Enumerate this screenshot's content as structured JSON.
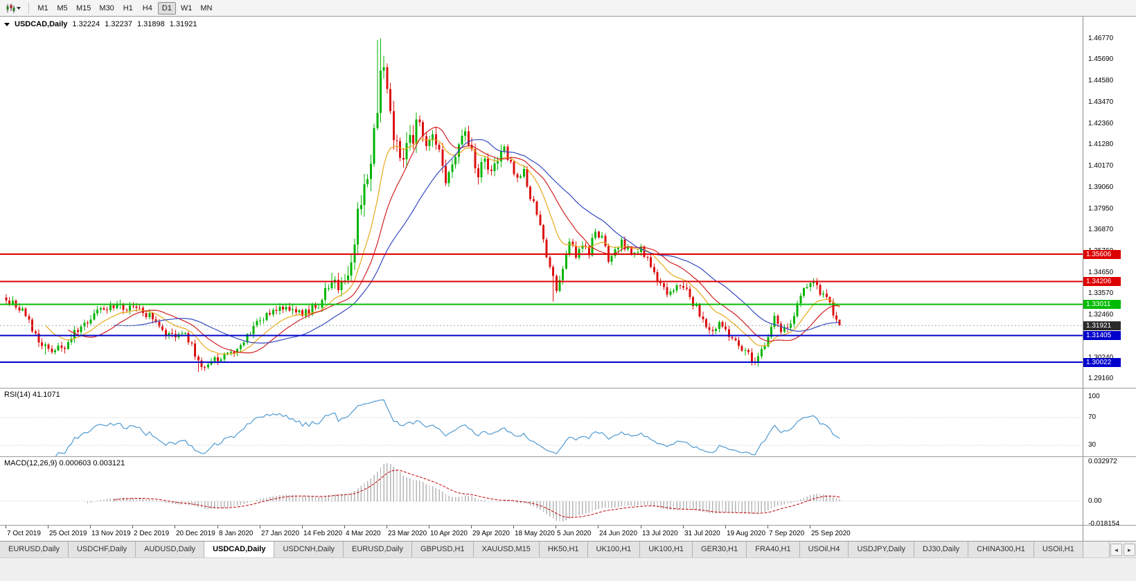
{
  "toolbar": {
    "timeframes": [
      {
        "label": "M1"
      },
      {
        "label": "M5"
      },
      {
        "label": "M15"
      },
      {
        "label": "M30"
      },
      {
        "label": "H1"
      },
      {
        "label": "H4"
      },
      {
        "label": "D1"
      },
      {
        "label": "W1"
      },
      {
        "label": "MN"
      }
    ],
    "active_timeframe": "D1"
  },
  "chart": {
    "symbol_label": "USDCAD,Daily",
    "ohlc": {
      "open": "1.32224",
      "high": "1.32237",
      "low": "1.31898",
      "close": "1.31921"
    }
  },
  "chart_data": {
    "type": "candlestick",
    "title": "USDCAD Daily with RSI and MACD",
    "symbol": "USDCAD",
    "timeframe": "Daily",
    "ylim": [
      1.287,
      1.479
    ],
    "num_candles": 257,
    "up_color": "#00b400",
    "down_color": "#dc1010",
    "last_candle": {
      "open": 1.32224,
      "high": 1.32237,
      "low": 1.31898,
      "close": 1.31921
    },
    "close_waypoints": [
      [
        0,
        1.333
      ],
      [
        3,
        1.3295
      ],
      [
        6,
        1.3245
      ],
      [
        9,
        1.3135
      ],
      [
        12,
        1.3085
      ],
      [
        15,
        1.306
      ],
      [
        18,
        1.309
      ],
      [
        21,
        1.316
      ],
      [
        24,
        1.3195
      ],
      [
        27,
        1.325
      ],
      [
        30,
        1.327
      ],
      [
        33,
        1.3285
      ],
      [
        36,
        1.328
      ],
      [
        39,
        1.33
      ],
      [
        42,
        1.3258
      ],
      [
        45,
        1.3232
      ],
      [
        48,
        1.3168
      ],
      [
        51,
        1.3132
      ],
      [
        54,
        1.3162
      ],
      [
        57,
        1.3085
      ],
      [
        59,
        1.3
      ],
      [
        61,
        1.2985
      ],
      [
        63,
        1.3002
      ],
      [
        66,
        1.3032
      ],
      [
        69,
        1.3052
      ],
      [
        72,
        1.3098
      ],
      [
        75,
        1.3168
      ],
      [
        78,
        1.3222
      ],
      [
        81,
        1.3262
      ],
      [
        84,
        1.3298
      ],
      [
        87,
        1.3288
      ],
      [
        90,
        1.3258
      ],
      [
        93,
        1.3272
      ],
      [
        96,
        1.33
      ],
      [
        98,
        1.339
      ],
      [
        100,
        1.343
      ],
      [
        102,
        1.3375
      ],
      [
        104,
        1.3425
      ],
      [
        106,
        1.3565
      ],
      [
        108,
        1.3755
      ],
      [
        110,
        1.3925
      ],
      [
        112,
        1.403
      ],
      [
        114,
        1.433
      ],
      [
        115,
        1.454
      ],
      [
        116,
        1.45
      ],
      [
        117,
        1.446
      ],
      [
        119,
        1.415
      ],
      [
        121,
        1.406
      ],
      [
        123,
        1.412
      ],
      [
        125,
        1.4185
      ],
      [
        127,
        1.423
      ],
      [
        129,
        1.415
      ],
      [
        131,
        1.418
      ],
      [
        133,
        1.408
      ],
      [
        135,
        1.392
      ],
      [
        137,
        1.401
      ],
      [
        139,
        1.412
      ],
      [
        141,
        1.418
      ],
      [
        143,
        1.409
      ],
      [
        145,
        1.398
      ],
      [
        147,
        1.406
      ],
      [
        149,
        1.399
      ],
      [
        151,
        1.404
      ],
      [
        153,
        1.411
      ],
      [
        155,
        1.402
      ],
      [
        157,
        1.396
      ],
      [
        159,
        1.399
      ],
      [
        161,
        1.386
      ],
      [
        163,
        1.378
      ],
      [
        165,
        1.362
      ],
      [
        167,
        1.348
      ],
      [
        169,
        1.339
      ],
      [
        171,
        1.35
      ],
      [
        173,
        1.363
      ],
      [
        175,
        1.356
      ],
      [
        177,
        1.361
      ],
      [
        179,
        1.356
      ],
      [
        181,
        1.369
      ],
      [
        183,
        1.364
      ],
      [
        185,
        1.354
      ],
      [
        187,
        1.359
      ],
      [
        189,
        1.362
      ],
      [
        191,
        1.358
      ],
      [
        193,
        1.3555
      ],
      [
        195,
        1.359
      ],
      [
        197,
        1.353
      ],
      [
        199,
        1.346
      ],
      [
        201,
        1.34
      ],
      [
        203,
        1.335
      ],
      [
        205,
        1.3385
      ],
      [
        207,
        1.3405
      ],
      [
        209,
        1.337
      ],
      [
        211,
        1.331
      ],
      [
        213,
        1.3255
      ],
      [
        215,
        1.3185
      ],
      [
        217,
        1.3155
      ],
      [
        219,
        1.3195
      ],
      [
        221,
        1.3155
      ],
      [
        223,
        1.3115
      ],
      [
        225,
        1.309
      ],
      [
        227,
        1.3055
      ],
      [
        229,
        1.3025
      ],
      [
        230,
        1.2996
      ],
      [
        232,
        1.3062
      ],
      [
        234,
        1.3132
      ],
      [
        236,
        1.3232
      ],
      [
        238,
        1.3172
      ],
      [
        240,
        1.3162
      ],
      [
        242,
        1.3242
      ],
      [
        244,
        1.3332
      ],
      [
        246,
        1.3402
      ],
      [
        248,
        1.3415
      ],
      [
        250,
        1.3372
      ],
      [
        252,
        1.3332
      ],
      [
        254,
        1.3262
      ],
      [
        255,
        1.3222
      ],
      [
        256,
        1.31921
      ]
    ],
    "forced_extremes": [
      {
        "index": 12,
        "low": 1.3042
      },
      {
        "index": 59,
        "low": 1.2952
      },
      {
        "index": 100,
        "high": 1.3464
      },
      {
        "index": 114,
        "high": 1.4668
      },
      {
        "index": 115,
        "high": 1.4677
      },
      {
        "index": 168,
        "low": 1.3316
      },
      {
        "index": 230,
        "low": 1.2994
      }
    ],
    "moving_averages": [
      {
        "name": "ma-fast-line",
        "type": "ema",
        "period": 13,
        "color": "#e8a818"
      },
      {
        "name": "ma-mid-line",
        "type": "sma",
        "period": 20,
        "color": "#d02020"
      },
      {
        "name": "ma-slow-line",
        "type": "sma",
        "period": 34,
        "color": "#3348c0"
      }
    ],
    "horizontal_levels": [
      {
        "price": 1.35606,
        "label": "1.35606",
        "color": "#dd0000",
        "width": 2
      },
      {
        "price": 1.34206,
        "label": "1.34206",
        "color": "#dd0000",
        "width": 2
      },
      {
        "price": 1.33011,
        "label": "1.33011",
        "color": "#00bb00",
        "width": 2
      },
      {
        "price": 1.31405,
        "label": "1.31405",
        "color": "#0000cc",
        "width": 2
      },
      {
        "price": 1.30022,
        "label": "1.30022",
        "color": "#0000cc",
        "width": 2
      }
    ],
    "current_price": {
      "value": 1.31921,
      "label": "1.31921",
      "badge_bg": "#2b2b2b"
    },
    "price_axis_ticks": [
      "1.46770",
      "1.45690",
      "1.44580",
      "1.43470",
      "1.42360",
      "1.41280",
      "1.40170",
      "1.39060",
      "1.37950",
      "1.36870",
      "1.35760",
      "1.34650",
      "1.33570",
      "1.32460",
      "1.31350",
      "1.30240",
      "1.29160"
    ],
    "x_date_ticks": [
      {
        "index": 0,
        "label": "7 Oct 2019"
      },
      {
        "index": 13,
        "label": "25 Oct 2019"
      },
      {
        "index": 26,
        "label": "13 Nov 2019"
      },
      {
        "index": 39,
        "label": "2 Dec 2019"
      },
      {
        "index": 52,
        "label": "20 Dec 2019"
      },
      {
        "index": 65,
        "label": "8 Jan 2020"
      },
      {
        "index": 78,
        "label": "27 Jan 2020"
      },
      {
        "index": 91,
        "label": "14 Feb 2020"
      },
      {
        "index": 104,
        "label": "4 Mar 2020"
      },
      {
        "index": 117,
        "label": "23 Mar 2020"
      },
      {
        "index": 130,
        "label": "10 Apr 2020"
      },
      {
        "index": 143,
        "label": "29 Apr 2020"
      },
      {
        "index": 156,
        "label": "18 May 2020"
      },
      {
        "index": 169,
        "label": "5 Jun 2020"
      },
      {
        "index": 182,
        "label": "24 Jun 2020"
      },
      {
        "index": 195,
        "label": "13 Jul 2020"
      },
      {
        "index": 208,
        "label": "31 Jul 2020"
      },
      {
        "index": 221,
        "label": "19 Aug 2020"
      },
      {
        "index": 234,
        "label": "7 Sep 2020"
      },
      {
        "index": 247,
        "label": "25 Sep 2020"
      }
    ],
    "indicators": {
      "rsi": {
        "label": "RSI(14) 41.1071",
        "period": 14,
        "value": 41.1071,
        "levels": [
          70,
          30
        ],
        "axis_labels": [
          "100",
          "70",
          "30"
        ],
        "color": "#4f9ad2",
        "ylim": [
          14,
          112
        ]
      },
      "macd": {
        "label": "MACD(12,26,9) 0.000603 0.003121",
        "fast": 12,
        "slow": 26,
        "signal": 9,
        "values": [
          0.000603,
          0.003121
        ],
        "axis_labels": [
          "0.032972",
          "0.00",
          "-0.018154"
        ],
        "histogram_color": "#b4b4b4",
        "signal_color": "#c00000",
        "ylim": [
          -0.0185,
          0.0345
        ]
      }
    }
  },
  "tabs": {
    "items": [
      {
        "label": "EURUSD,Daily"
      },
      {
        "label": "USDCHF,Daily"
      },
      {
        "label": "AUDUSD,Daily"
      },
      {
        "label": "USDCAD,Daily"
      },
      {
        "label": "USDCNH,Daily"
      },
      {
        "label": "EURUSD,Daily"
      },
      {
        "label": "GBPUSD,H1"
      },
      {
        "label": "XAUUSD,M15"
      },
      {
        "label": "HK50,H1"
      },
      {
        "label": "UK100,H1"
      },
      {
        "label": "UK100,H1"
      },
      {
        "label": "GER30,H1"
      },
      {
        "label": "FRA40,H1"
      },
      {
        "label": "USOil,H4"
      },
      {
        "label": "USDJPY,Daily"
      },
      {
        "label": "DJ30,Daily"
      },
      {
        "label": "CHINA300,H1"
      },
      {
        "label": "USOil,H1"
      }
    ],
    "active_index": 3,
    "nav": {
      "left_icon": "◄",
      "right_icon": "►"
    }
  }
}
